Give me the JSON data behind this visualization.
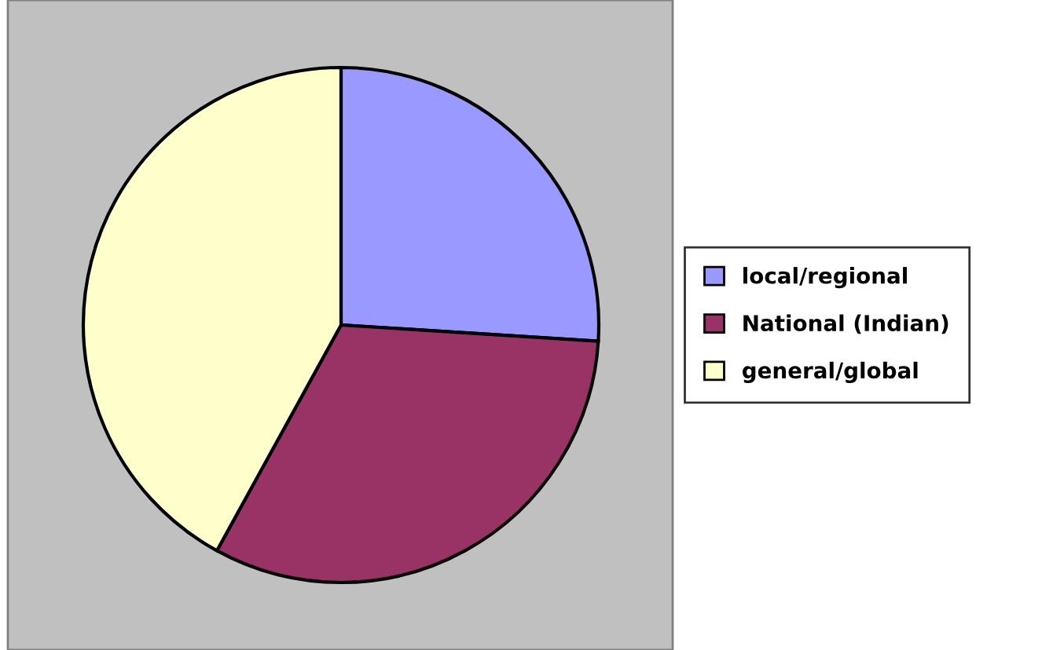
{
  "chart_data": {
    "type": "pie",
    "categories": [
      "local/regional",
      "National (Indian)",
      "general/global"
    ],
    "values": [
      26,
      32,
      42
    ],
    "colors": [
      "#9999ff",
      "#993366",
      "#ffffcc"
    ],
    "legend": "right"
  }
}
